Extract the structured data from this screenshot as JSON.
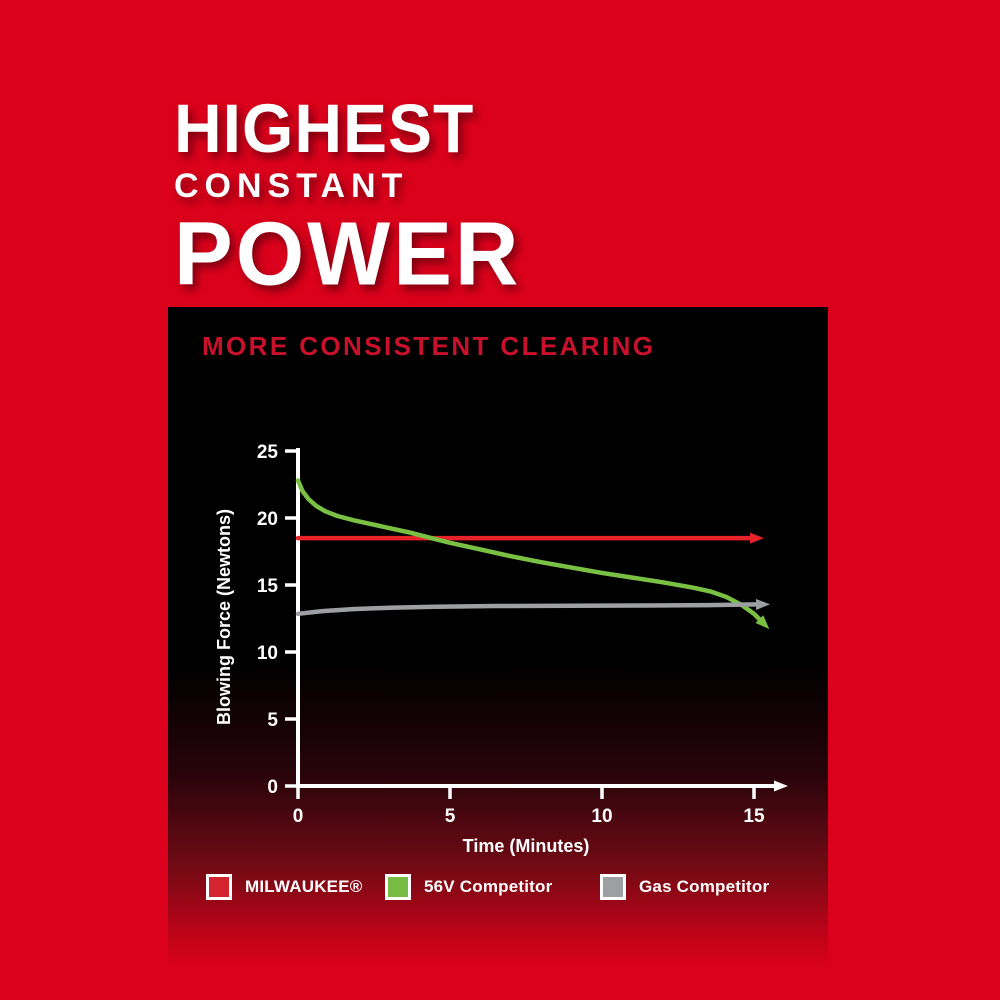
{
  "headline": {
    "line1": "HIGHEST",
    "line2": "CONSTANT",
    "line3": "POWER"
  },
  "panel": {
    "title": "MORE CONSISTENT CLEARING",
    "title_color": "#c9112b"
  },
  "colors": {
    "background_red": "#db001b",
    "axis_white": "#ffffff"
  },
  "chart_data": {
    "type": "line",
    "title": "MORE CONSISTENT CLEARING",
    "xlabel": "Time (Minutes)",
    "ylabel": "Blowing Force (Newtons)",
    "xlim": [
      0,
      15
    ],
    "ylim": [
      0,
      25
    ],
    "x_ticks": [
      0,
      5,
      10,
      15
    ],
    "y_ticks": [
      0,
      5,
      10,
      15,
      20,
      25
    ],
    "grid": false,
    "legend_position": "bottom",
    "series": [
      {
        "name": "MILWAUKEE®",
        "color": "#e8212b",
        "arrow": true,
        "points": [
          [
            0,
            18.5
          ],
          [
            14.9,
            18.5
          ]
        ]
      },
      {
        "name": "56V Competitor",
        "color": "#7ac143",
        "arrow": true,
        "points": [
          [
            0,
            22.8
          ],
          [
            0.15,
            22.0
          ],
          [
            0.35,
            21.4
          ],
          [
            0.6,
            20.9
          ],
          [
            0.9,
            20.5
          ],
          [
            1.3,
            20.15
          ],
          [
            1.8,
            19.85
          ],
          [
            2.4,
            19.55
          ],
          [
            3.0,
            19.25
          ],
          [
            3.7,
            18.9
          ],
          [
            4.3,
            18.55
          ],
          [
            5.0,
            18.15
          ],
          [
            6.0,
            17.65
          ],
          [
            7.0,
            17.15
          ],
          [
            8.0,
            16.7
          ],
          [
            9.0,
            16.3
          ],
          [
            10.0,
            15.9
          ],
          [
            11.0,
            15.55
          ],
          [
            12.0,
            15.2
          ],
          [
            13.0,
            14.8
          ],
          [
            13.6,
            14.5
          ],
          [
            14.1,
            14.1
          ],
          [
            14.6,
            13.5
          ],
          [
            15.0,
            12.85
          ],
          [
            15.2,
            12.4
          ]
        ]
      },
      {
        "name": "Gas Competitor",
        "color": "#9d9fa2",
        "arrow": true,
        "points": [
          [
            0,
            12.85
          ],
          [
            0.8,
            13.05
          ],
          [
            1.8,
            13.2
          ],
          [
            3.0,
            13.3
          ],
          [
            4.5,
            13.38
          ],
          [
            6.5,
            13.43
          ],
          [
            9.0,
            13.45
          ],
          [
            11.5,
            13.47
          ],
          [
            13.5,
            13.5
          ],
          [
            15.1,
            13.55
          ]
        ]
      }
    ],
    "legend": [
      {
        "label": "MILWAUKEE®",
        "color": "#d3242f"
      },
      {
        "label": "56V Competitor",
        "color": "#76bc43"
      },
      {
        "label": "Gas Competitor",
        "color": "#9d9fa2"
      }
    ]
  }
}
